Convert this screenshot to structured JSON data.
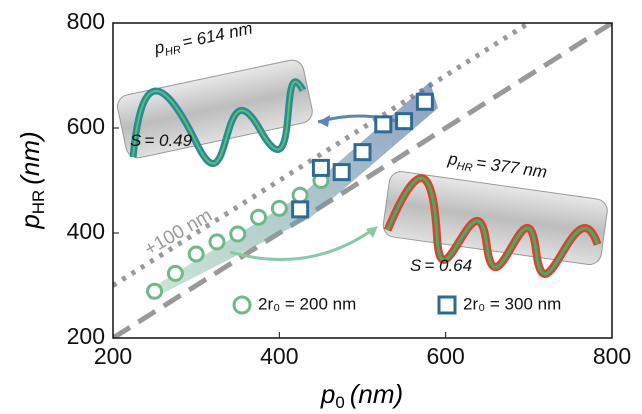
{
  "chart_data": {
    "type": "scatter",
    "x_label": {
      "symbol": "p",
      "subscript": "0",
      "unit": "(nm)"
    },
    "y_label": {
      "symbol": "p",
      "subscript": "HR",
      "unit": "(nm)"
    },
    "xlim": [
      200,
      800
    ],
    "ylim": [
      200,
      800
    ],
    "xticks": [
      200,
      400,
      600,
      800
    ],
    "yticks": [
      200,
      400,
      600,
      800
    ],
    "series": [
      {
        "name": "2r₀ = 200 nm",
        "color": "#6fb88a",
        "marker": "circle",
        "x": [
          250,
          275,
          300,
          325,
          350,
          375,
          400,
          425,
          450
        ],
        "values": [
          289,
          323,
          360,
          383,
          398,
          430,
          447,
          472,
          500
        ]
      },
      {
        "name": "2r₀ = 300 nm",
        "color": "#2f6a92",
        "marker": "square",
        "x": [
          425,
          450,
          475,
          500,
          525,
          550,
          575
        ],
        "values": [
          445,
          524,
          516,
          554,
          607,
          613,
          650
        ]
      }
    ],
    "reference_label": "+100 nm",
    "annotations": [
      {
        "symbol": "p",
        "subscript": "HR",
        "text": "= 614 nm"
      },
      {
        "symbol": "S",
        "text": "= 0.49"
      },
      {
        "symbol": "p",
        "subscript": "HR",
        "text": "= 377 nm"
      },
      {
        "symbol": "S",
        "text": "= 0.64"
      }
    ]
  }
}
